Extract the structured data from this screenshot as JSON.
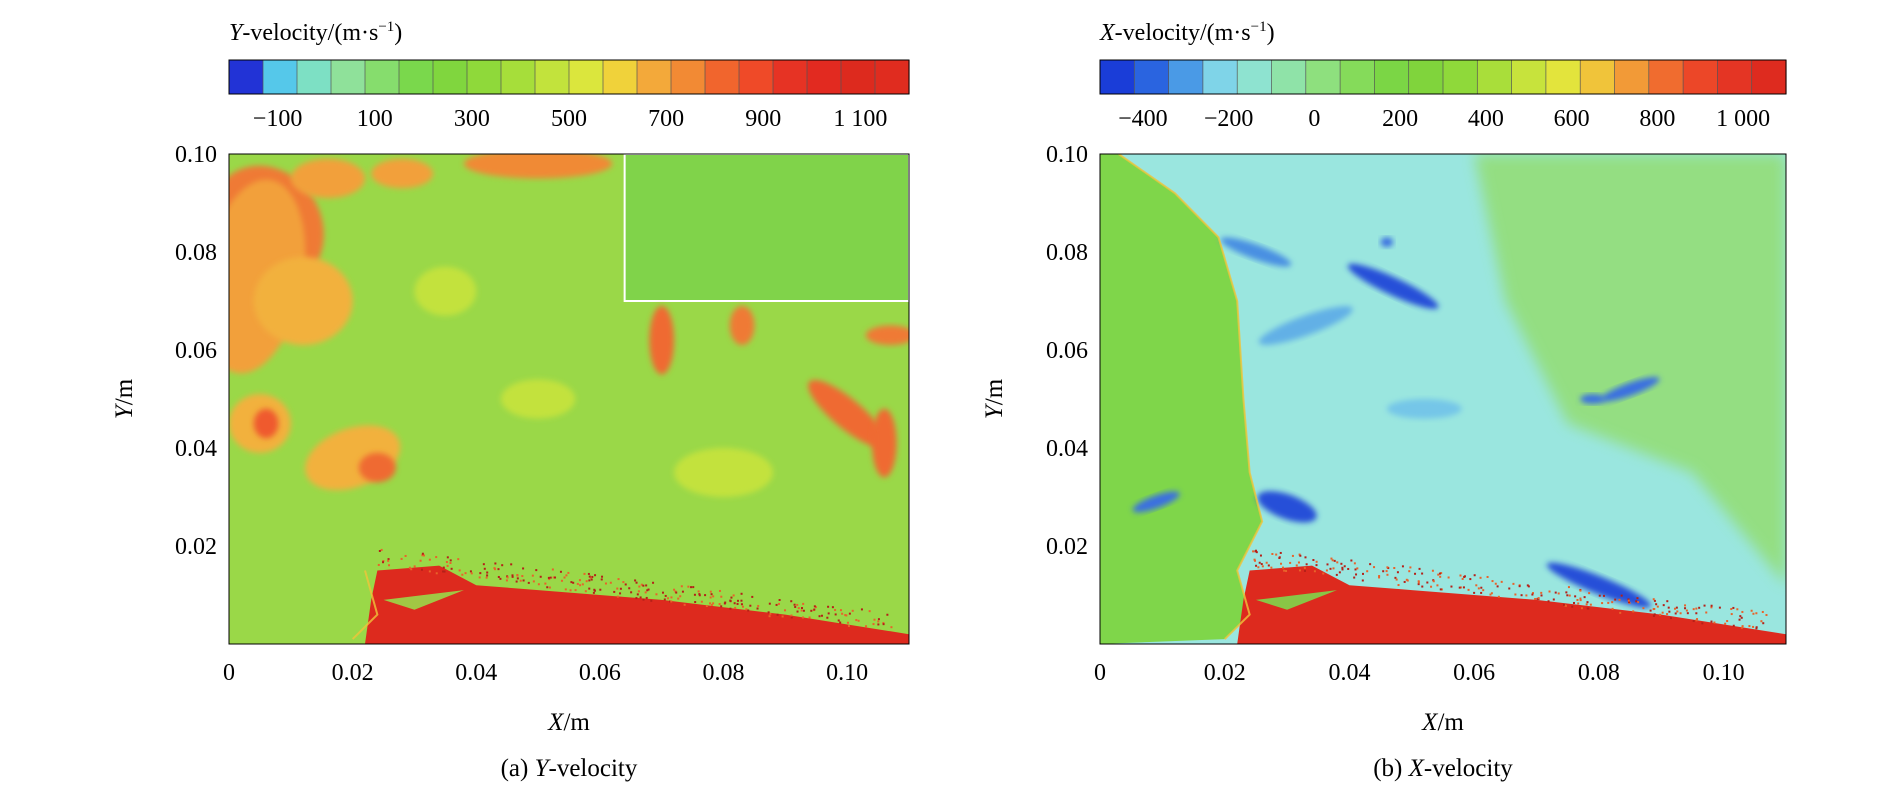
{
  "charts": [
    {
      "id": "a",
      "type": "heatmap",
      "caption_label": "(a) ",
      "caption_var": "Y",
      "caption_rest": "-velocity",
      "colorbar": {
        "title_var": "Y",
        "title_rest": "-velocity/(m·s",
        "title_exp": "−1",
        "title_close": ")",
        "range": [
          -200,
          1200
        ],
        "ticks": [
          {
            "v": -100,
            "label": "−100"
          },
          {
            "v": 100,
            "label": "100"
          },
          {
            "v": 300,
            "label": "300"
          },
          {
            "v": 500,
            "label": "500"
          },
          {
            "v": 700,
            "label": "700"
          },
          {
            "v": 900,
            "label": "900"
          },
          {
            "v": 1100,
            "label": "1 100"
          }
        ],
        "colors": [
          "#2233d6",
          "#55c8ea",
          "#7de0c4",
          "#8fe19a",
          "#86dd6d",
          "#7ad84c",
          "#80d63e",
          "#8fd93a",
          "#a6de3a",
          "#c2e33c",
          "#dbe63d",
          "#f0d23a",
          "#f3a93a",
          "#f28a34",
          "#f1652d",
          "#ef4a28",
          "#e63324",
          "#e22a20",
          "#dd2a1e",
          "#e02c1f"
        ]
      },
      "x_axis": {
        "var": "X",
        "unit": "/m",
        "range": [
          0,
          0.11
        ],
        "ticks": [
          {
            "v": 0,
            "label": "0"
          },
          {
            "v": 0.02,
            "label": "0.02"
          },
          {
            "v": 0.04,
            "label": "0.04"
          },
          {
            "v": 0.06,
            "label": "0.06"
          },
          {
            "v": 0.08,
            "label": "0.08"
          },
          {
            "v": 0.1,
            "label": "0.10"
          }
        ]
      },
      "y_axis": {
        "var": "Y",
        "unit": "/m",
        "range": [
          0,
          0.1
        ],
        "ticks": [
          {
            "v": 0.02,
            "label": "0.02"
          },
          {
            "v": 0.04,
            "label": "0.04"
          },
          {
            "v": 0.06,
            "label": "0.06"
          },
          {
            "v": 0.08,
            "label": "0.08"
          },
          {
            "v": 0.1,
            "label": "0.10"
          }
        ]
      },
      "field_color": "#9ad848",
      "blobs": [
        {
          "x": 0.006,
          "y": 0.085,
          "rx": 0.009,
          "ry": 0.013,
          "rot": -30,
          "color": "#ef7a35"
        },
        {
          "x": 0.004,
          "y": 0.075,
          "rx": 0.008,
          "ry": 0.02,
          "rot": 10,
          "color": "#f2a03a"
        },
        {
          "x": 0.012,
          "y": 0.07,
          "rx": 0.008,
          "ry": 0.009,
          "rot": 0,
          "color": "#f2b13e"
        },
        {
          "x": 0.016,
          "y": 0.095,
          "rx": 0.006,
          "ry": 0.004,
          "rot": 0,
          "color": "#f2a03a"
        },
        {
          "x": 0.028,
          "y": 0.096,
          "rx": 0.005,
          "ry": 0.003,
          "rot": 0,
          "color": "#f2a03a"
        },
        {
          "x": 0.05,
          "y": 0.098,
          "rx": 0.012,
          "ry": 0.003,
          "rot": 0,
          "color": "#f08a36"
        },
        {
          "x": 0.005,
          "y": 0.045,
          "rx": 0.005,
          "ry": 0.006,
          "rot": 0,
          "color": "#f2b13e"
        },
        {
          "x": 0.006,
          "y": 0.045,
          "rx": 0.002,
          "ry": 0.003,
          "rot": 0,
          "color": "#ef5a2d"
        },
        {
          "x": 0.02,
          "y": 0.038,
          "rx": 0.008,
          "ry": 0.006,
          "rot": -20,
          "color": "#f2b13e"
        },
        {
          "x": 0.024,
          "y": 0.036,
          "rx": 0.003,
          "ry": 0.003,
          "rot": 0,
          "color": "#ef6a30"
        },
        {
          "x": 0.07,
          "y": 0.062,
          "rx": 0.002,
          "ry": 0.007,
          "rot": 0,
          "color": "#ef6a30"
        },
        {
          "x": 0.083,
          "y": 0.065,
          "rx": 0.002,
          "ry": 0.004,
          "rot": 0,
          "color": "#ef7a35"
        },
        {
          "x": 0.1,
          "y": 0.047,
          "rx": 0.008,
          "ry": 0.003,
          "rot": 40,
          "color": "#ef6a30"
        },
        {
          "x": 0.106,
          "y": 0.041,
          "rx": 0.002,
          "ry": 0.007,
          "rot": 0,
          "color": "#ef6a30"
        },
        {
          "x": 0.107,
          "y": 0.063,
          "rx": 0.004,
          "ry": 0.002,
          "rot": 0,
          "color": "#ef7a35"
        },
        {
          "x": 0.05,
          "y": 0.05,
          "rx": 0.006,
          "ry": 0.004,
          "rot": 0,
          "color": "#c3e23e"
        },
        {
          "x": 0.08,
          "y": 0.035,
          "rx": 0.008,
          "ry": 0.005,
          "rot": 0,
          "color": "#c3e23e"
        },
        {
          "x": 0.035,
          "y": 0.072,
          "rx": 0.005,
          "ry": 0.005,
          "rot": 0,
          "color": "#c3e23e"
        }
      ],
      "inset": {
        "x0": 0.064,
        "y0": 0.07,
        "x1": 0.11,
        "y1": 0.1,
        "color": "#80d34a"
      },
      "shock_x": [
        {
          "y": 0.015,
          "x": 0.022
        },
        {
          "y": 0.006,
          "x": 0.024
        },
        {
          "y": 0.001,
          "x": 0.02
        }
      ],
      "hot_region": {
        "color": "#dd2a1e"
      }
    },
    {
      "id": "b",
      "type": "heatmap",
      "caption_label": "(b) ",
      "caption_var": "X",
      "caption_rest": "-velocity",
      "colorbar": {
        "title_var": "X",
        "title_rest": "-velocity/(m·s",
        "title_exp": "−1",
        "title_close": ")",
        "range": [
          -500,
          1100
        ],
        "ticks": [
          {
            "v": -400,
            "label": "−400"
          },
          {
            "v": -200,
            "label": "−200"
          },
          {
            "v": 0,
            "label": "0"
          },
          {
            "v": 200,
            "label": "200"
          },
          {
            "v": 400,
            "label": "400"
          },
          {
            "v": 600,
            "label": "600"
          },
          {
            "v": 800,
            "label": "800"
          },
          {
            "v": 1000,
            "label": "1 000"
          }
        ],
        "colors": [
          "#1a3dd8",
          "#2a64e0",
          "#4a9ae6",
          "#7fd4e8",
          "#8ee3d0",
          "#8fe3a8",
          "#8ee07e",
          "#85db5a",
          "#7bd645",
          "#80d43c",
          "#8fd93a",
          "#a9de3a",
          "#c7e33c",
          "#e3e43c",
          "#f0c43a",
          "#f29a37",
          "#f06c2f",
          "#ec4728",
          "#e43524",
          "#de2b1f"
        ]
      },
      "x_axis": {
        "var": "X",
        "unit": "/m",
        "range": [
          0,
          0.11
        ],
        "ticks": [
          {
            "v": 0,
            "label": "0"
          },
          {
            "v": 0.02,
            "label": "0.02"
          },
          {
            "v": 0.04,
            "label": "0.04"
          },
          {
            "v": 0.06,
            "label": "0.06"
          },
          {
            "v": 0.08,
            "label": "0.08"
          },
          {
            "v": 0.1,
            "label": "0.10"
          }
        ]
      },
      "y_axis": {
        "var": "Y",
        "unit": "/m",
        "range": [
          0,
          0.1
        ],
        "ticks": [
          {
            "v": 0.02,
            "label": "0.02"
          },
          {
            "v": 0.04,
            "label": "0.04"
          },
          {
            "v": 0.06,
            "label": "0.06"
          },
          {
            "v": 0.08,
            "label": "0.08"
          },
          {
            "v": 0.1,
            "label": "0.10"
          }
        ]
      },
      "field_color": "#9ae6df",
      "left_region_color": "#7fd64a",
      "shock_x": [
        {
          "y": 0.1,
          "x": 0.003
        },
        {
          "y": 0.092,
          "x": 0.012
        },
        {
          "y": 0.083,
          "x": 0.019
        },
        {
          "y": 0.07,
          "x": 0.022
        },
        {
          "y": 0.05,
          "x": 0.023
        },
        {
          "y": 0.035,
          "x": 0.024
        },
        {
          "y": 0.025,
          "x": 0.026
        },
        {
          "y": 0.015,
          "x": 0.022
        },
        {
          "y": 0.006,
          "x": 0.024
        },
        {
          "y": 0.001,
          "x": 0.02
        }
      ],
      "right_region": {
        "color": "#92dc63"
      },
      "blobs": [
        {
          "x": 0.047,
          "y": 0.073,
          "rx": 0.008,
          "ry": 0.0018,
          "rot": 25,
          "color": "#2850d8"
        },
        {
          "x": 0.03,
          "y": 0.028,
          "rx": 0.005,
          "ry": 0.0025,
          "rot": 20,
          "color": "#2850d8"
        },
        {
          "x": 0.08,
          "y": 0.012,
          "rx": 0.009,
          "ry": 0.0018,
          "rot": 22,
          "color": "#2850d8"
        },
        {
          "x": 0.085,
          "y": 0.052,
          "rx": 0.005,
          "ry": 0.0013,
          "rot": -20,
          "color": "#3a70e0"
        },
        {
          "x": 0.025,
          "y": 0.08,
          "rx": 0.006,
          "ry": 0.0015,
          "rot": 20,
          "color": "#4a90e2"
        },
        {
          "x": 0.033,
          "y": 0.065,
          "rx": 0.008,
          "ry": 0.002,
          "rot": -20,
          "color": "#62b0e6"
        },
        {
          "x": 0.009,
          "y": 0.029,
          "rx": 0.004,
          "ry": 0.0013,
          "rot": -20,
          "color": "#3a70e0"
        },
        {
          "x": 0.052,
          "y": 0.048,
          "rx": 0.006,
          "ry": 0.002,
          "rot": 0,
          "color": "#74c6e8"
        },
        {
          "x": 0.079,
          "y": 0.05,
          "rx": 0.002,
          "ry": 0.001,
          "rot": 0,
          "color": "#3a70e0"
        },
        {
          "x": 0.046,
          "y": 0.082,
          "rx": 0.001,
          "ry": 0.001,
          "rot": 0,
          "color": "#3a70e0"
        }
      ],
      "hot_region": {
        "color": "#dd2a1e"
      }
    }
  ]
}
